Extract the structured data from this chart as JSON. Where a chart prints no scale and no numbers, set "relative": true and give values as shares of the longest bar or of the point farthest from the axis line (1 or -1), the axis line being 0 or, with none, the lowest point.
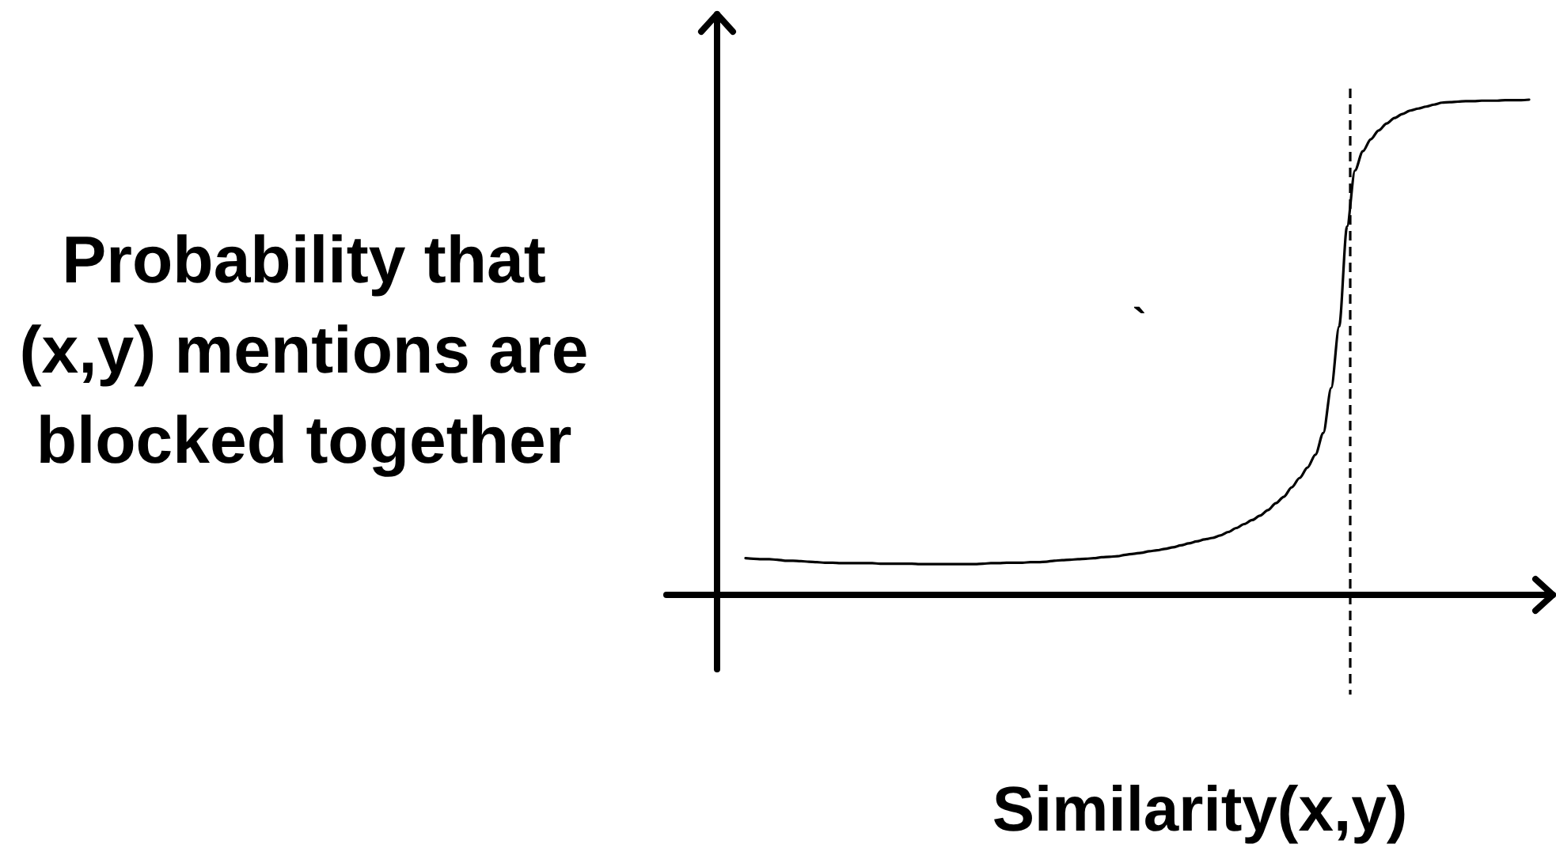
{
  "chart_data": {
    "type": "line",
    "relative": true,
    "xlabel": "Similarity(x,y)",
    "ylabel": "Probability that (x,y) mentions are blocked together",
    "annotations": [
      "`"
    ],
    "categories": [
      null,
      null,
      null,
      null,
      null,
      null,
      null,
      null,
      null,
      null,
      null,
      null,
      null,
      null,
      null,
      null,
      null,
      null,
      null,
      null,
      null,
      null,
      null,
      null,
      null,
      null,
      null,
      null,
      null,
      null,
      null,
      null,
      null,
      null,
      null,
      null,
      null,
      null,
      null,
      null,
      null,
      null,
      null,
      null,
      null,
      null,
      null,
      null,
      null,
      null,
      null,
      null,
      null,
      null,
      null,
      null,
      null,
      null,
      null,
      null,
      null,
      null,
      null,
      null,
      null,
      null,
      null,
      null,
      null,
      null,
      null,
      null,
      null,
      null,
      null,
      null,
      null,
      null,
      null,
      null,
      null,
      null,
      null,
      null,
      null,
      null,
      null,
      null,
      null,
      null,
      null,
      null,
      null,
      null,
      null,
      null,
      null,
      null,
      null,
      null
    ],
    "series": [
      {
        "color": "#000000",
        "values": [
          0.074,
          0.073,
          0.072,
          0.072,
          0.071,
          0.069,
          0.069,
          0.068,
          0.067,
          0.066,
          0.065,
          0.065,
          0.064,
          0.064,
          0.064,
          0.064,
          0.064,
          0.063,
          0.063,
          0.063,
          0.063,
          0.063,
          0.062,
          0.062,
          0.062,
          0.062,
          0.062,
          0.062,
          0.062,
          0.062,
          0.063,
          0.064,
          0.064,
          0.065,
          0.065,
          0.065,
          0.066,
          0.066,
          0.067,
          0.069,
          0.07,
          0.071,
          0.072,
          0.073,
          0.074,
          0.076,
          0.077,
          0.078,
          0.081,
          0.083,
          0.085,
          0.088,
          0.09,
          0.093,
          0.096,
          0.1,
          0.104,
          0.108,
          0.112,
          0.115,
          0.12,
          0.127,
          0.135,
          0.143,
          0.151,
          0.16,
          0.171,
          0.185,
          0.198,
          0.217,
          0.236,
          0.257,
          0.283,
          0.327,
          0.418,
          0.542,
          0.744,
          0.857,
          0.896,
          0.92,
          0.938,
          0.952,
          0.963,
          0.971,
          0.978,
          0.982,
          0.986,
          0.99,
          0.994,
          0.995,
          0.996,
          0.997,
          0.997,
          0.998,
          0.998,
          0.998,
          0.999,
          0.999,
          0.999,
          1
        ]
      }
    ],
    "tick_labels": false,
    "marker": "none",
    "line_style": "solid"
  }
}
